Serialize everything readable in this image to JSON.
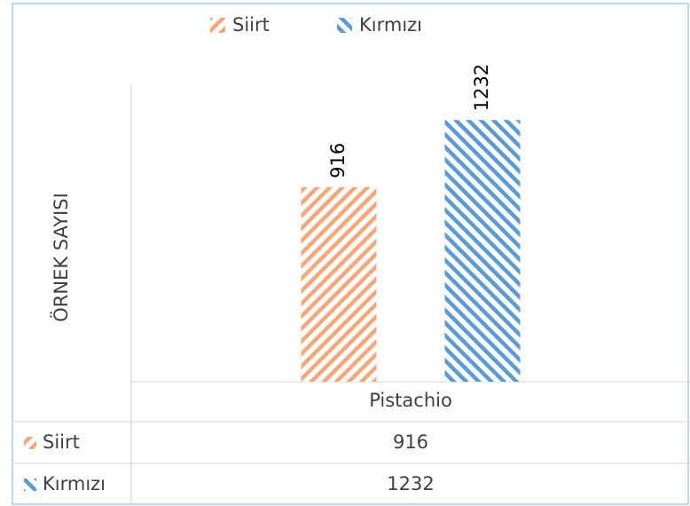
{
  "chart_data": {
    "type": "bar",
    "y_label": "ÖRNEK SAYISI",
    "categories": [
      "Pistachio"
    ],
    "series": [
      {
        "name": "Siirt",
        "color": "#f4a77a",
        "values": [
          916
        ]
      },
      {
        "name": "Kırmızı",
        "color": "#5b9bd5",
        "values": [
          1232
        ]
      }
    ],
    "ylim": [
      0,
      1400
    ],
    "legend": "top",
    "data_table": true
  }
}
